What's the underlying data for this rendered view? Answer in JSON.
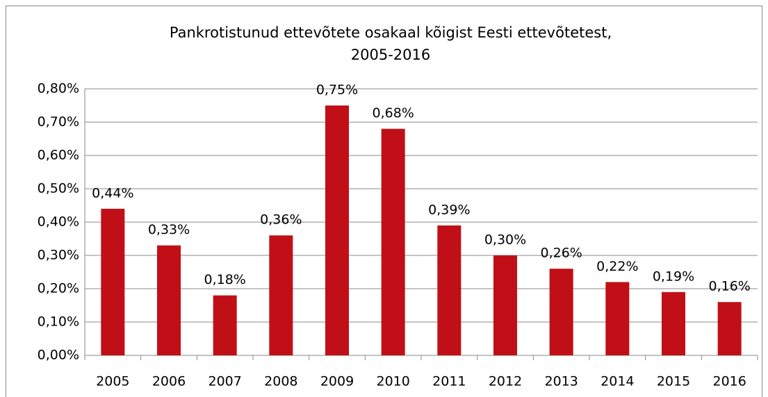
{
  "chart_data": {
    "type": "bar",
    "title": [
      "Pankrotistunud ettevõtete osakaal kõigist Eesti ettevõtetest,",
      "2005-2016"
    ],
    "categories": [
      "2005",
      "2006",
      "2007",
      "2008",
      "2009",
      "2010",
      "2011",
      "2012",
      "2013",
      "2014",
      "2015",
      "2016"
    ],
    "values": [
      0.44,
      0.33,
      0.18,
      0.36,
      0.75,
      0.68,
      0.39,
      0.3,
      0.26,
      0.22,
      0.19,
      0.16
    ],
    "value_labels": [
      "0,44%",
      "0,33%",
      "0,18%",
      "0,36%",
      "0,75%",
      "0,68%",
      "0,39%",
      "0,30%",
      "0,26%",
      "0,22%",
      "0,19%",
      "0,16%"
    ],
    "color": "#c00f16",
    "ylim": [
      0,
      0.8
    ],
    "yticks": [
      {
        "value": 0,
        "label": "0,00%"
      },
      {
        "value": 0.1,
        "label": "0,10%"
      },
      {
        "value": 0.2,
        "label": "0,20%"
      },
      {
        "value": 0.3,
        "label": "0,30%"
      },
      {
        "value": 0.4,
        "label": "0,40%"
      },
      {
        "value": 0.5,
        "label": "0,50%"
      },
      {
        "value": 0.6,
        "label": "0,60%"
      },
      {
        "value": 0.7,
        "label": "0,70%"
      },
      {
        "value": 0.8,
        "label": "0,80%"
      }
    ],
    "grid": true
  }
}
